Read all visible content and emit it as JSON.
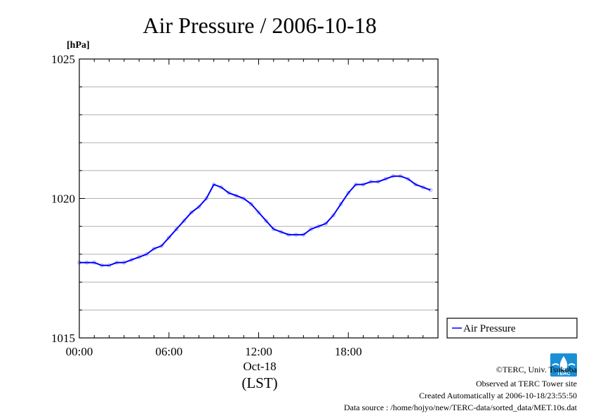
{
  "chart_data": {
    "type": "line",
    "title": "Air Pressure / 2006-10-18",
    "ylabel": "[hPa]",
    "y_ticks": [
      "1015",
      "1020",
      "1025"
    ],
    "ylim": [
      1015,
      1025
    ],
    "xlim": [
      0,
      24
    ],
    "x_ticks": [
      "00:00",
      "06:00",
      "12:00",
      "18:00"
    ],
    "x_date_label": "Oct-18",
    "x_unit_label": "(LST)",
    "grid": "horizontal",
    "legend_position": "right",
    "series": [
      {
        "name": "Air Pressure",
        "color": "#0000ff",
        "marker_color": "#9999ff",
        "x": [
          0.0,
          0.5,
          1.0,
          1.5,
          2.0,
          2.5,
          3.0,
          3.5,
          4.0,
          4.5,
          5.0,
          5.5,
          6.0,
          6.5,
          7.0,
          7.5,
          8.0,
          8.5,
          9.0,
          9.5,
          10.0,
          10.5,
          11.0,
          11.5,
          12.0,
          12.5,
          13.0,
          13.5,
          14.0,
          14.5,
          15.0,
          15.5,
          16.0,
          16.5,
          17.0,
          17.5,
          18.0,
          18.5,
          19.0,
          19.5,
          20.0,
          20.5,
          21.0,
          21.5,
          22.0,
          22.5,
          23.0,
          23.5
        ],
        "y": [
          1017.7,
          1017.7,
          1017.7,
          1017.6,
          1017.6,
          1017.7,
          1017.7,
          1017.8,
          1017.9,
          1018.0,
          1018.2,
          1018.3,
          1018.6,
          1018.9,
          1019.2,
          1019.5,
          1019.7,
          1020.0,
          1020.5,
          1020.4,
          1020.2,
          1020.1,
          1020.0,
          1019.8,
          1019.5,
          1019.2,
          1018.9,
          1018.8,
          1018.7,
          1018.7,
          1018.7,
          1018.9,
          1019.0,
          1019.1,
          1019.4,
          1019.8,
          1020.2,
          1020.5,
          1020.5,
          1020.6,
          1020.6,
          1020.7,
          1020.8,
          1020.8,
          1020.7,
          1020.5,
          1020.4,
          1020.3
        ]
      }
    ]
  },
  "credits": {
    "copyright": "©TERC, Univ. Tsukuba",
    "observed": "Observed at TERC Tower site",
    "created": "Created Automatically at 2006-10-18/23:55:50",
    "source": "Data source : /home/hojyo/new/TERC-data/sorted_data/MET.10s.dat"
  },
  "logo": {
    "text": "TERC",
    "color": "#1a8fd6"
  }
}
